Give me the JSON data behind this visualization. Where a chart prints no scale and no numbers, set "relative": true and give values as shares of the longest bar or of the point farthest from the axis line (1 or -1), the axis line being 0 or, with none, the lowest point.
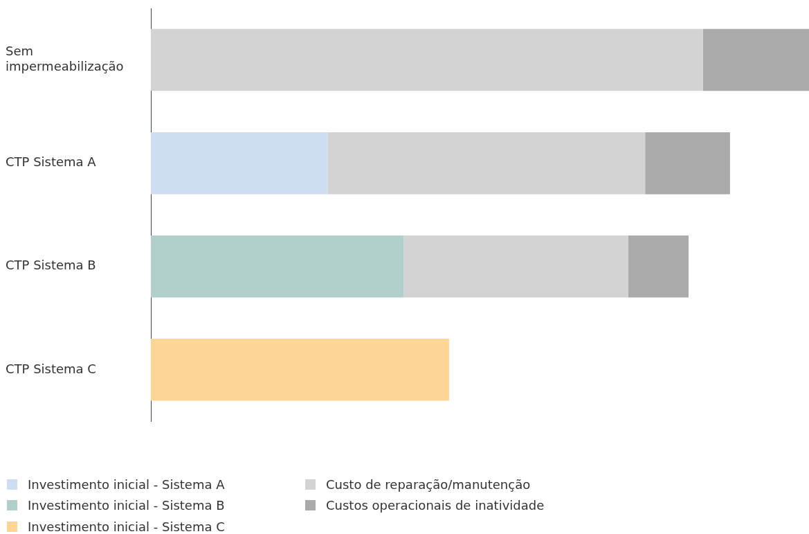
{
  "chart_data": {
    "type": "bar",
    "orientation": "horizontal",
    "stacked": true,
    "relative": true,
    "legend": "bottom",
    "categories": [
      "Sem impermeabilização",
      "CTP Sistema A",
      "CTP Sistema B",
      "CTP Sistema C"
    ],
    "series": [
      {
        "name": "Investimento inicial - Sistema A",
        "color": "#cfddf0",
        "values": [
          null,
          0.269,
          null,
          null
        ]
      },
      {
        "name": "Investimento inicial - Sistema B",
        "color": "#b2d0cb",
        "values": [
          null,
          null,
          0.384,
          null
        ]
      },
      {
        "name": "Investimento inicial - Sistema C",
        "color": "#fdd697",
        "values": [
          null,
          null,
          null,
          0.453
        ]
      },
      {
        "name": "Custo de reparação/manutenção",
        "color": "#d3d3d3",
        "values": [
          0.839,
          0.482,
          0.341,
          null
        ]
      },
      {
        "name": "Custos operacionais de inatividade",
        "color": "#aaaaaa",
        "values": [
          0.161,
          0.129,
          0.092,
          null
        ]
      }
    ]
  }
}
